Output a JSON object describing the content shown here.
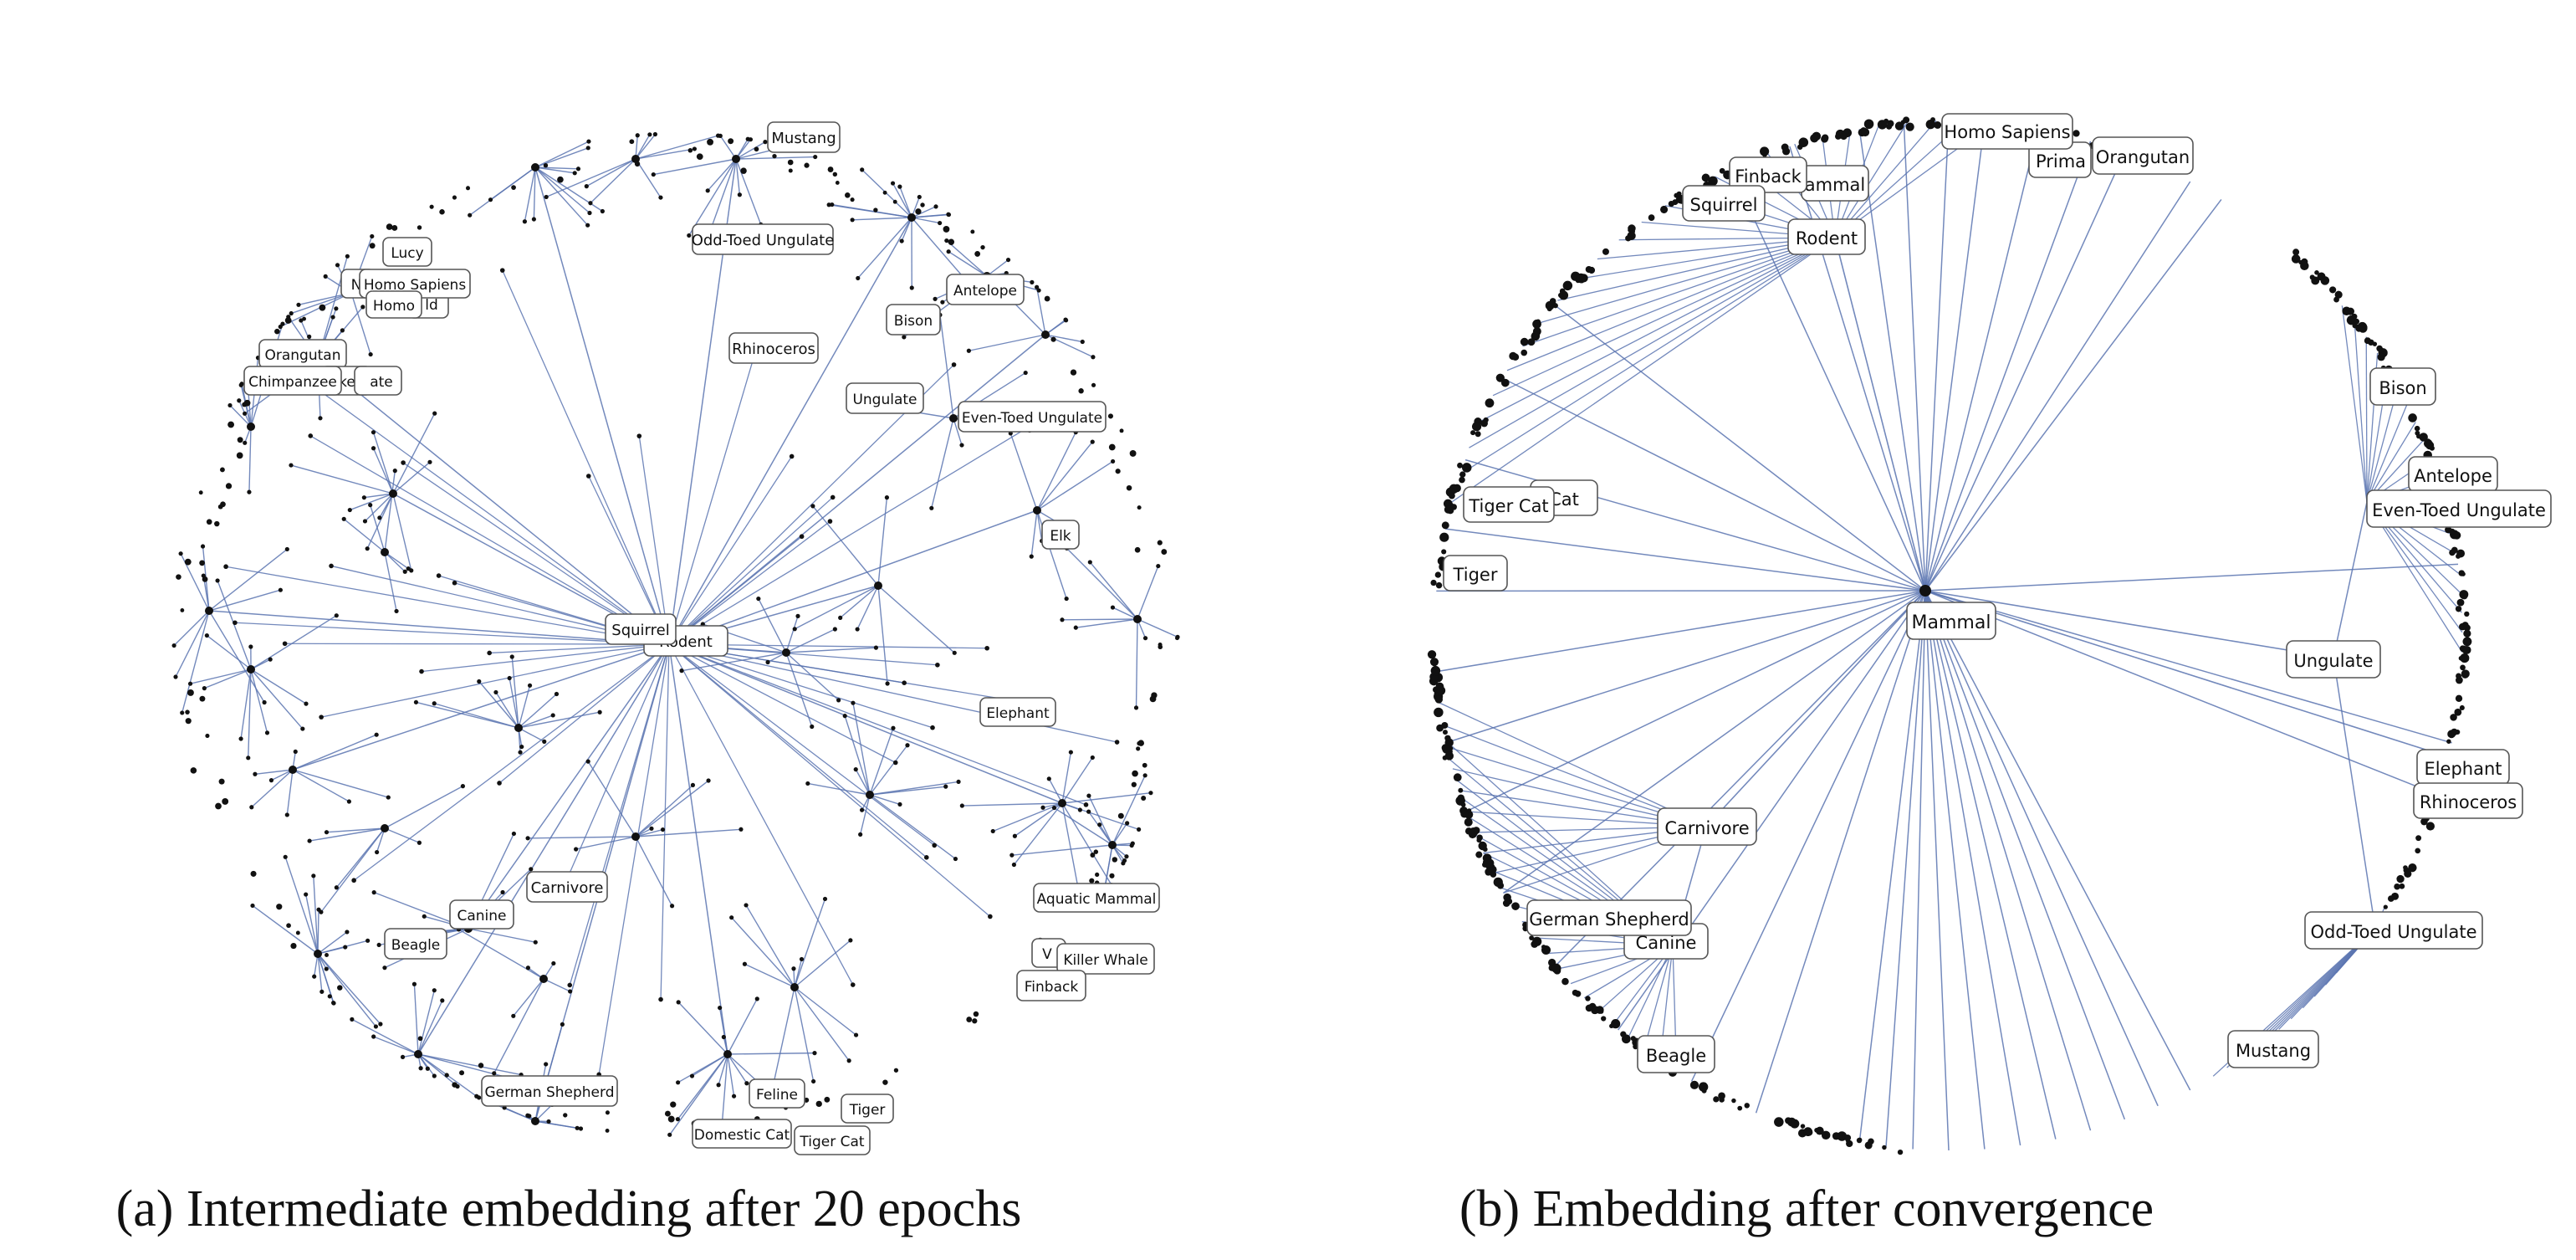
{
  "colors": {
    "edge": "#5a74b0",
    "node": "#111111",
    "box_stroke": "#555555",
    "box_fill": "#ffffff"
  },
  "panels": [
    {
      "id": "a",
      "caption": "(a) Intermediate embedding after 20 epochs",
      "labels": [
        "Mustang",
        "Odd-Toed Ungulate",
        "Lucy",
        "Homo Sapiens",
        "Homo",
        "Orangutan",
        "Chimpanzee",
        "Rhinoceros",
        "Bison",
        "Antelope",
        "Ungulate",
        "Even-Toed Ungulate",
        "Elk",
        "Squirrel",
        "Rodent",
        "Elephant",
        "Carnivore",
        "Canine",
        "Beagle",
        "Aquatic Mammal",
        "Killer Whale",
        "Finback",
        "German Shepherd",
        "Feline",
        "Tiger",
        "Domestic Cat",
        "Tiger Cat"
      ],
      "partial_labels": [
        "N",
        "ld",
        "key",
        "ate",
        "V"
      ]
    },
    {
      "id": "b",
      "caption": "(b) Embedding after convergence",
      "labels": [
        "Homo Sapiens",
        "Orangutan",
        "Finback",
        "Squirrel",
        "Rodent",
        "Tiger Cat",
        "Tiger",
        "Mammal",
        "Bison",
        "Antelope",
        "Even-Toed Ungulate",
        "Ungulate",
        "Elephant",
        "Rhinoceros",
        "Carnivore",
        "German Shepherd",
        "Canine",
        "Odd-Toed Ungulate",
        "Beagle",
        "Mustang"
      ],
      "partial_labels": [
        "ammal",
        "Prima",
        "Cat"
      ]
    }
  ]
}
